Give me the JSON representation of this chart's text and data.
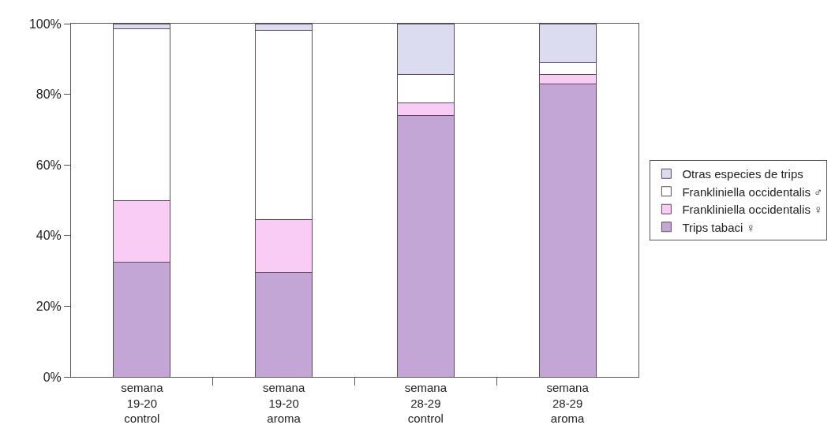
{
  "chart_data": {
    "type": "bar",
    "stacked": true,
    "categories": [
      "semana\n19-20\ncontrol",
      "semana\n19-20\naroma",
      "semana\n28-29\ncontrol",
      "semana\n28-29\naroma"
    ],
    "series": [
      {
        "name": "Trips tabaci ♀",
        "color": "#c3a6d6",
        "values": [
          32.5,
          29.5,
          74,
          83
        ]
      },
      {
        "name": "Frankliniella occidentalis ♀",
        "color": "#f9ccf5",
        "values": [
          17.5,
          15,
          3.5,
          2.5
        ]
      },
      {
        "name": "Frankliniella occidentalis ♂",
        "color": "#ffffff",
        "values": [
          48.5,
          53.5,
          8,
          3.5
        ]
      },
      {
        "name": "Otras especies de trips",
        "color": "#dcdcf0",
        "values": [
          1.5,
          2,
          14.5,
          11
        ]
      }
    ],
    "ylim": [
      0,
      100
    ],
    "yticks": [
      {
        "value": 0,
        "label": "0%"
      },
      {
        "value": 20,
        "label": "20%"
      },
      {
        "value": 40,
        "label": "40%"
      },
      {
        "value": 60,
        "label": "60%"
      },
      {
        "value": 80,
        "label": "80%"
      },
      {
        "value": 100,
        "label": "100%"
      }
    ],
    "legend": "right"
  }
}
